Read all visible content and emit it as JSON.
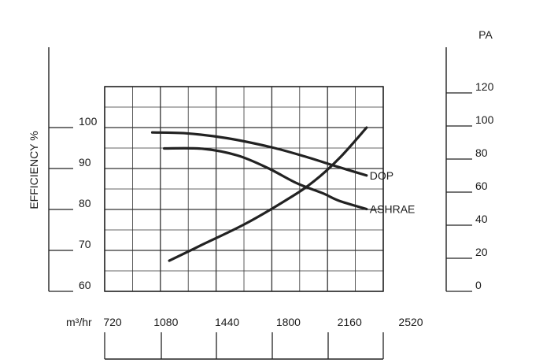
{
  "chart_data": {
    "type": "line",
    "xlabel": "m³/hr",
    "x_ticks": [
      720,
      1080,
      1440,
      1800,
      2160,
      2520
    ],
    "x_range": [
      900,
      2520
    ],
    "grid": true,
    "y_left": {
      "label": "EFFICIENCY %",
      "ticks": [
        60,
        70,
        80,
        90,
        100
      ],
      "range": [
        60,
        110
      ]
    },
    "y_right": {
      "label": "PA",
      "ticks": [
        0,
        20,
        40,
        60,
        80,
        100,
        120
      ],
      "range": [
        0,
        120
      ]
    },
    "series": [
      {
        "name": "DOP",
        "axis": "left",
        "color": "#222222",
        "points": [
          [
            1000,
            98.8
          ],
          [
            1200,
            98.6
          ],
          [
            1440,
            97.4
          ],
          [
            1700,
            95.2
          ],
          [
            1900,
            92.9
          ],
          [
            2100,
            90.3
          ],
          [
            2260,
            88.3
          ]
        ]
      },
      {
        "name": "ASHRAE",
        "axis": "left",
        "color": "#222222",
        "points": [
          [
            1070,
            94.9
          ],
          [
            1300,
            94.8
          ],
          [
            1500,
            93.2
          ],
          [
            1680,
            90.1
          ],
          [
            1850,
            86.4
          ],
          [
            2000,
            84.0
          ],
          [
            2100,
            82.1
          ],
          [
            2260,
            80.1
          ]
        ]
      },
      {
        "name": "",
        "axis": "right",
        "color": "#222222",
        "points": [
          [
            1100,
            18.5
          ],
          [
            1300,
            28.5
          ],
          [
            1550,
            41.0
          ],
          [
            1800,
            56.0
          ],
          [
            1950,
            66.5
          ],
          [
            2100,
            80.5
          ],
          [
            2260,
            99.0
          ]
        ]
      }
    ]
  }
}
